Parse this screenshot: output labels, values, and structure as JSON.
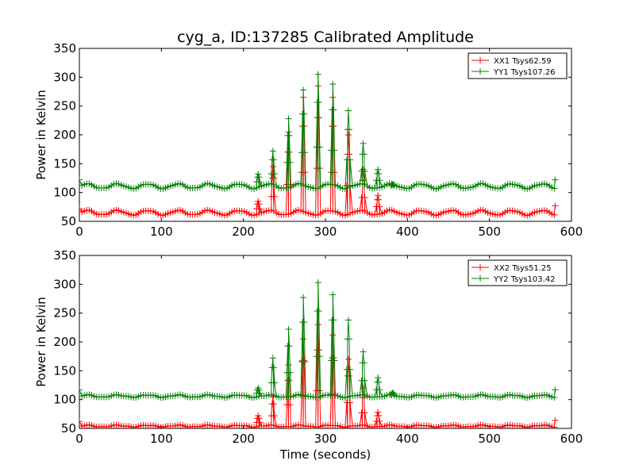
{
  "chart_data": [
    {
      "type": "line",
      "title": "cyg_a, ID:137285 Calibrated Amplitude",
      "xlabel": "",
      "ylabel": "Power in Kelvin",
      "xlim": [
        0,
        600
      ],
      "ylim": [
        50,
        350
      ],
      "xticks": [
        "0",
        "100",
        "200",
        "300",
        "400",
        "500",
        "600"
      ],
      "yticks": [
        "50",
        "100",
        "150",
        "200",
        "250",
        "300",
        "350"
      ],
      "grid": false,
      "legend_position": "top-right",
      "marker": "+",
      "series": [
        {
          "name": "XX1 Tsys62.59",
          "color": "#ff0000",
          "baseline": {
            "x_start": 0,
            "x_end": 580,
            "step": 3,
            "mean": 65,
            "ripple": 4,
            "period": 37
          },
          "points": [
            [
              0,
              72
            ],
            [
              580,
              77
            ]
          ],
          "peaks": [
            [
              218,
              85
            ],
            [
              236,
              145
            ],
            [
              255,
              205
            ],
            [
              273,
              265
            ],
            [
              291,
              285
            ],
            [
              309,
              265
            ],
            [
              328,
              200
            ],
            [
              346,
              140
            ],
            [
              364,
              95
            ]
          ]
        },
        {
          "name": "YY1 Tsys107.26",
          "color": "#008000",
          "baseline": {
            "x_start": 0,
            "x_end": 580,
            "step": 3,
            "mean": 111,
            "ripple": 4,
            "period": 37
          },
          "points": [
            [
              0,
              122
            ],
            [
              580,
              122
            ]
          ],
          "peaks": [
            [
              218,
              132
            ],
            [
              236,
              172
            ],
            [
              255,
              228
            ],
            [
              273,
              278
            ],
            [
              291,
              305
            ],
            [
              309,
              288
            ],
            [
              328,
              242
            ],
            [
              346,
              185
            ],
            [
              364,
              140
            ],
            [
              382,
              114
            ]
          ]
        }
      ]
    },
    {
      "type": "line",
      "title": "",
      "xlabel": "Time (seconds)",
      "ylabel": "Power in Kelvin",
      "xlim": [
        0,
        600
      ],
      "ylim": [
        50,
        350
      ],
      "xticks": [
        "0",
        "100",
        "200",
        "300",
        "400",
        "500",
        "600"
      ],
      "yticks": [
        "50",
        "100",
        "150",
        "200",
        "250",
        "300",
        "350"
      ],
      "grid": false,
      "legend_position": "top-right",
      "marker": "+",
      "series": [
        {
          "name": "XX2 Tsys51.25",
          "color": "#ff0000",
          "baseline": {
            "x_start": 0,
            "x_end": 580,
            "step": 3,
            "mean": 54,
            "ripple": 1.5,
            "period": 37
          },
          "points": [
            [
              0,
              62
            ],
            [
              580,
              64
            ]
          ],
          "peaks": [
            [
              218,
              72
            ],
            [
              236,
              105
            ],
            [
              255,
              160
            ],
            [
              273,
              205
            ],
            [
              291,
              230
            ],
            [
              309,
              212
            ],
            [
              328,
              170
            ],
            [
              346,
              120
            ],
            [
              364,
              78
            ]
          ]
        },
        {
          "name": "YY2 Tsys103.42",
          "color": "#008000",
          "baseline": {
            "x_start": 0,
            "x_end": 580,
            "step": 3,
            "mean": 106,
            "ripple": 2,
            "period": 37
          },
          "points": [
            [
              0,
              117
            ],
            [
              580,
              117
            ]
          ],
          "peaks": [
            [
              218,
              120
            ],
            [
              236,
              172
            ],
            [
              255,
              222
            ],
            [
              273,
              277
            ],
            [
              291,
              303
            ],
            [
              309,
              282
            ],
            [
              328,
              238
            ],
            [
              346,
              183
            ],
            [
              364,
              138
            ],
            [
              382,
              112
            ]
          ]
        }
      ]
    }
  ]
}
